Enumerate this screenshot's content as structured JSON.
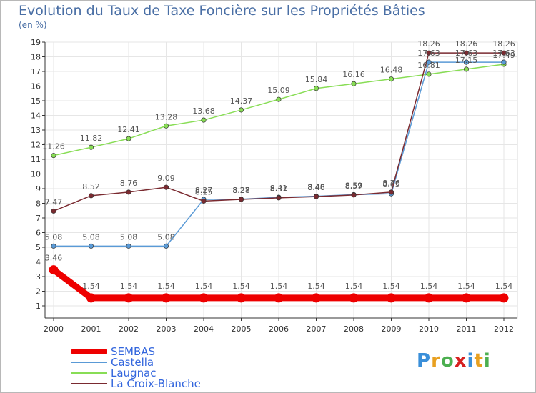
{
  "chart_data": {
    "type": "line",
    "title": "Evolution du Taux de Taxe Foncière sur les Propriétés Bâties",
    "ylabel": "(en %)",
    "xlabel": "",
    "ylim": [
      1,
      19
    ],
    "yticks": [
      "1",
      "2",
      "3",
      "4",
      "5",
      "6",
      "7",
      "8",
      "9",
      "10",
      "11",
      "12",
      "13",
      "14",
      "15",
      "16",
      "17",
      "18",
      "19"
    ],
    "categories": [
      "2000",
      "2001",
      "2002",
      "2003",
      "2004",
      "2005",
      "2006",
      "2007",
      "2008",
      "2009",
      "2010",
      "2011",
      "2012"
    ],
    "series": [
      {
        "name": "SEMBAS",
        "color": "#ee0000",
        "values": [
          3.46,
          1.54,
          1.54,
          1.54,
          1.54,
          1.54,
          1.54,
          1.54,
          1.54,
          1.54,
          1.54,
          1.54,
          1.54
        ],
        "labels": [
          "3.46",
          "1.54",
          "1.54",
          "1.54",
          "1.54",
          "1.54",
          "1.54",
          "1.54",
          "1.54",
          "1.54",
          "1.54",
          "1.54",
          "1.54"
        ]
      },
      {
        "name": "Castella",
        "color": "#5a9ad6",
        "values": [
          5.08,
          5.08,
          5.08,
          5.08,
          8.27,
          8.28,
          8.41,
          8.48,
          8.59,
          8.65,
          17.63,
          17.63,
          17.63
        ],
        "labels": [
          "5.08",
          "5.08",
          "5.08",
          "5.08",
          "8.27",
          "8.28",
          "8.41",
          "8.48",
          "8.59",
          "8.65",
          "17.63",
          "17.63",
          "17.63"
        ]
      },
      {
        "name": "Laugnac",
        "color": "#88dd55",
        "values": [
          11.26,
          11.82,
          12.41,
          13.28,
          13.68,
          14.37,
          15.09,
          15.84,
          16.16,
          16.48,
          16.81,
          17.15,
          17.49
        ],
        "labels": [
          "11.26",
          "11.82",
          "12.41",
          "13.28",
          "13.68",
          "14.37",
          "15.09",
          "15.84",
          "16.16",
          "16.48",
          "16.81",
          "17.15",
          "17.49"
        ]
      },
      {
        "name": "La Croix-Blanche",
        "color": "#7a2a30",
        "values": [
          7.47,
          8.52,
          8.76,
          9.09,
          8.15,
          8.27,
          8.37,
          8.46,
          8.57,
          8.76,
          18.26,
          18.26,
          18.26
        ],
        "labels": [
          "7.47",
          "8.52",
          "8.76",
          "9.09",
          "8.15",
          "8.27",
          "8.37",
          "8.46",
          "8.57",
          "8.76",
          "18.26",
          "18.26",
          "18.26"
        ]
      }
    ]
  },
  "legend": {
    "items": [
      "SEMBAS",
      "Castella",
      "Laugnac",
      "La Croix-Blanche"
    ]
  },
  "brand": {
    "letters": [
      "P",
      "r",
      "o",
      "x",
      "i",
      "t",
      "i"
    ],
    "colors": [
      "#3a8fd9",
      "#e8a020",
      "#4caf50",
      "#d62020",
      "#3a8fd9",
      "#e8a020",
      "#4caf50"
    ]
  }
}
